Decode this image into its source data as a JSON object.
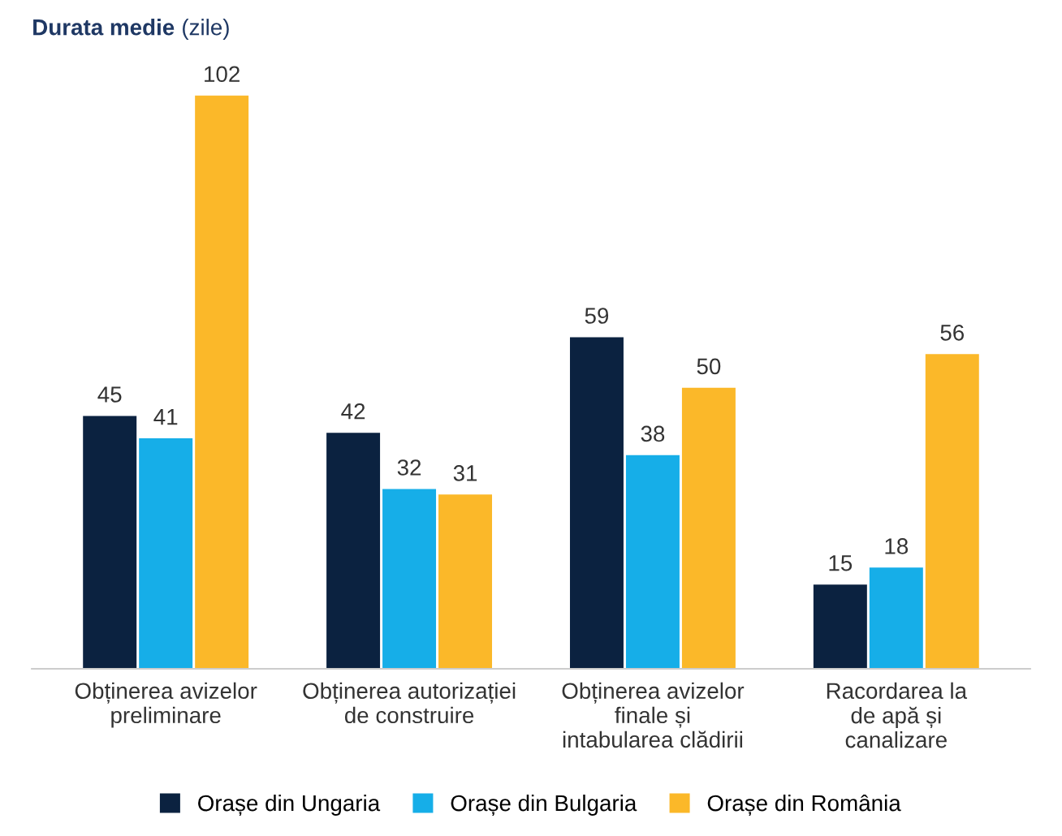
{
  "chart_data": {
    "type": "bar",
    "title": "Durata medie",
    "subtitle": "(zile)",
    "categories": [
      "Obținerea avizelor\npreliminare",
      "Obținerea autorizației\nde construire",
      "Obținerea avizelor\nfinale și\nintabularea clădirii",
      "Racordarea la\nde apă și\ncanalizare"
    ],
    "series": [
      {
        "name": "Orașe din Ungaria",
        "color": "#0b2240",
        "values": [
          45,
          42,
          59,
          15
        ]
      },
      {
        "name": "Orașe din Bulgaria",
        "color": "#16aee8",
        "values": [
          41,
          32,
          38,
          18
        ]
      },
      {
        "name": "Orașe din România",
        "color": "#fbb829",
        "values": [
          102,
          31,
          50,
          56
        ]
      }
    ],
    "data_labels": true,
    "legend": "bottom",
    "grid": false
  }
}
